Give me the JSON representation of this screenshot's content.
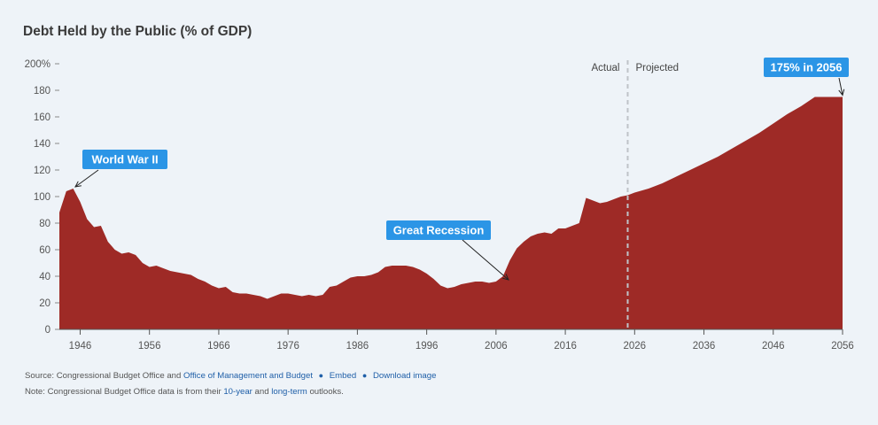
{
  "title": "Debt Held by the Public (% of GDP)",
  "colors": {
    "area": "#9e2a26",
    "callout": "#2b95e6",
    "background": "#eef3f8",
    "link": "#1f5fa8"
  },
  "chart_data": {
    "type": "area",
    "title": "Debt Held by the Public (% of GDP)",
    "xlabel": "",
    "ylabel": "",
    "xlim": [
      1943,
      2056
    ],
    "ylim": [
      0,
      200
    ],
    "x_ticks": [
      "1946",
      "1956",
      "1966",
      "1976",
      "1986",
      "1996",
      "2006",
      "2016",
      "2026",
      "2036",
      "2046",
      "2056"
    ],
    "y_ticks": [
      "0",
      "20",
      "40",
      "60",
      "80",
      "100",
      "120",
      "140",
      "160",
      "180",
      "200%"
    ],
    "grid": false,
    "series": [
      {
        "x": [
          1943,
          1944,
          1945,
          1946,
          1947,
          1948,
          1949,
          1950,
          1951,
          1952,
          1953,
          1954,
          1955,
          1956,
          1957,
          1958,
          1959,
          1960,
          1961,
          1962,
          1963,
          1964,
          1965,
          1966,
          1967,
          1968,
          1969,
          1970,
          1971,
          1972,
          1973,
          1974,
          1975,
          1976,
          1977,
          1978,
          1979,
          1980,
          1981,
          1982,
          1983,
          1984,
          1985,
          1986,
          1987,
          1988,
          1989,
          1990,
          1991,
          1992,
          1993,
          1994,
          1995,
          1996,
          1997,
          1998,
          1999,
          2000,
          2001,
          2002,
          2003,
          2004,
          2005,
          2006,
          2007,
          2008,
          2009,
          2010,
          2011,
          2012,
          2013,
          2014,
          2015,
          2016,
          2017,
          2018,
          2019,
          2020,
          2021,
          2022,
          2023,
          2024,
          2025,
          2026,
          2028,
          2030,
          2032,
          2034,
          2036,
          2038,
          2040,
          2042,
          2044,
          2046,
          2048,
          2050,
          2052,
          2054,
          2056
        ],
        "values": [
          88,
          104,
          106,
          96,
          83,
          77,
          78,
          66,
          60,
          57,
          58,
          56,
          50,
          47,
          48,
          46,
          44,
          43,
          42,
          41,
          38,
          36,
          33,
          31,
          32,
          28,
          27,
          27,
          26,
          25,
          23,
          25,
          27,
          27,
          26,
          25,
          26,
          25,
          26,
          32,
          33,
          36,
          39,
          40,
          40,
          41,
          43,
          47,
          48,
          48,
          48,
          47,
          45,
          42,
          38,
          33,
          31,
          32,
          34,
          35,
          36,
          36,
          35,
          36,
          40,
          52,
          61,
          66,
          70,
          72,
          73,
          72,
          76,
          76,
          78,
          80,
          99,
          97,
          95,
          96,
          98,
          100,
          101,
          103,
          106,
          110,
          115,
          120,
          125,
          130,
          136,
          142,
          148,
          155,
          162,
          168,
          175,
          175,
          175
        ]
      }
    ],
    "markers": {
      "left": "Actual",
      "right": "Projected",
      "at_x": 2025
    },
    "annotations": [
      {
        "text": "World War II",
        "x": 1945,
        "y": 106
      },
      {
        "text": "Great Recession",
        "x": 2008,
        "y": 36
      },
      {
        "text": "175% in 2056",
        "x": 2056,
        "y": 175
      }
    ]
  },
  "footer": {
    "source_prefix": "Source: Congressional Budget Office and",
    "source_link": "Office of Management and Budget",
    "embed": "Embed",
    "download": "Download image",
    "note_prefix": "Note: Congressional Budget Office data is from their",
    "note_link1": "10-year",
    "note_mid": "and",
    "note_link2": "long-term",
    "note_suffix": "outlooks."
  }
}
